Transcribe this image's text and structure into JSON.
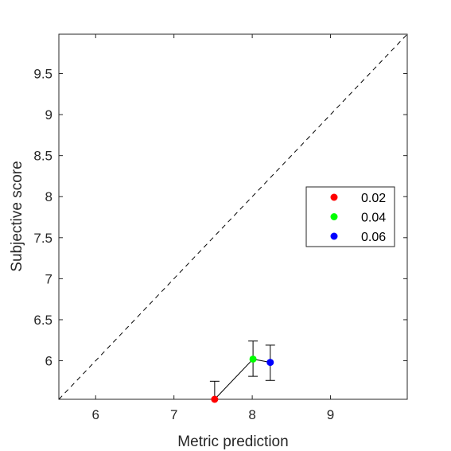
{
  "chart_data": {
    "type": "scatter",
    "title": "",
    "xlabel": "Metric prediction",
    "ylabel": "Subjective score",
    "xlim": [
      5.53,
      9.98
    ],
    "ylim": [
      5.53,
      9.98
    ],
    "xticks": [
      6,
      7,
      8,
      9
    ],
    "yticks": [
      6,
      6.5,
      7,
      7.5,
      8,
      8.5,
      9,
      9.5
    ],
    "xtick_labels": [
      "6",
      "7",
      "8",
      "9"
    ],
    "ytick_labels": [
      "6",
      "6.5",
      "7",
      "7.5",
      "8",
      "8.5",
      "9",
      "9.5"
    ],
    "grid": false,
    "reference_line": "y = x (dashed)",
    "legend_position": "right",
    "line_color": "#000000",
    "points": [
      {
        "name": "0.02",
        "x": 7.52,
        "y": 5.53,
        "err_low": 5.53,
        "err_high": 5.75,
        "color": "#ff0000"
      },
      {
        "name": "0.04",
        "x": 8.01,
        "y": 6.02,
        "err_low": 5.81,
        "err_high": 6.24,
        "color": "#00ff00"
      },
      {
        "name": "0.06",
        "x": 8.23,
        "y": 5.98,
        "err_low": 5.76,
        "err_high": 6.19,
        "color": "#0000ff"
      }
    ]
  }
}
